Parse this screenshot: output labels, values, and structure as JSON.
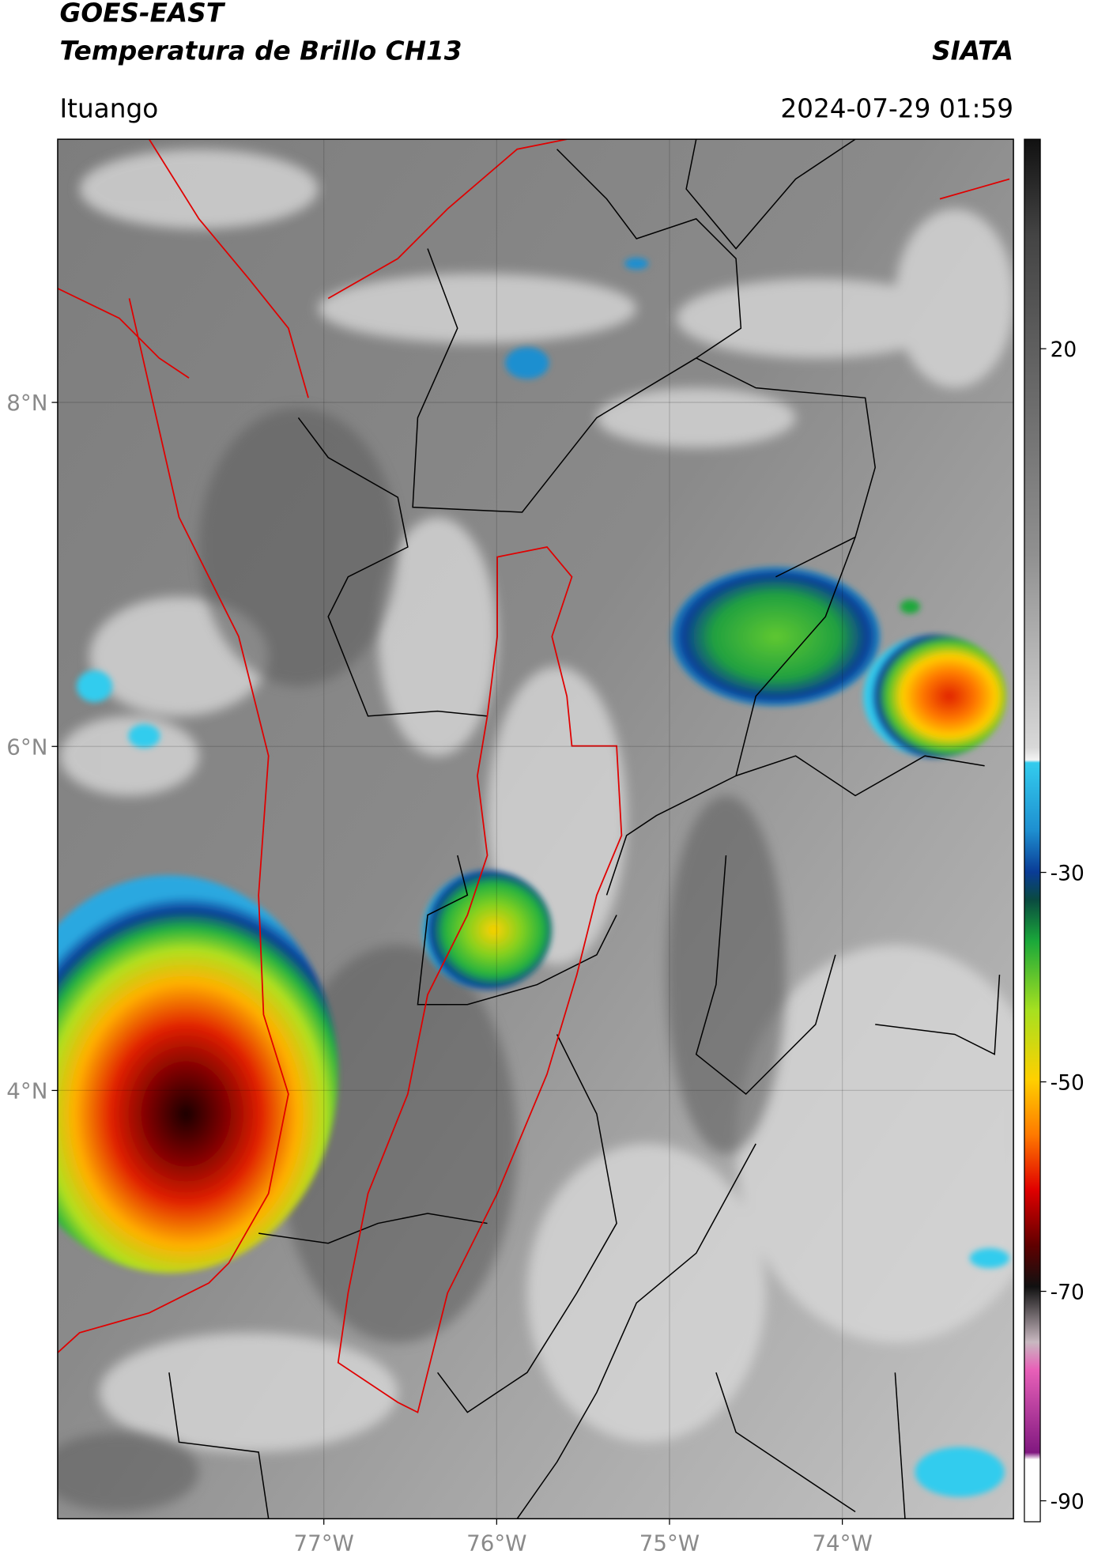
{
  "header": {
    "title": "GOES-EAST",
    "subtitle": "Temperatura de Brillo CH13",
    "agency": "SIATA",
    "location": "Ituango",
    "timestamp": "2024-07-29 01:59"
  },
  "map": {
    "lat_range": [
      1.51,
      9.53
    ],
    "lon_range": [
      -78.54,
      -73.01
    ],
    "lat_ticks": [
      {
        "value": 8,
        "label": "8°N"
      },
      {
        "value": 6,
        "label": "6°N"
      },
      {
        "value": 4,
        "label": "4°N"
      }
    ],
    "lon_ticks": [
      {
        "value": -77,
        "label": "77°W"
      },
      {
        "value": -76,
        "label": "76°W"
      },
      {
        "value": -75,
        "label": "75°W"
      },
      {
        "value": -74,
        "label": "74°W"
      }
    ]
  },
  "colorbar": {
    "range": [
      -92,
      40
    ],
    "ticks": [
      20,
      -30,
      -50,
      -70,
      -90
    ]
  }
}
